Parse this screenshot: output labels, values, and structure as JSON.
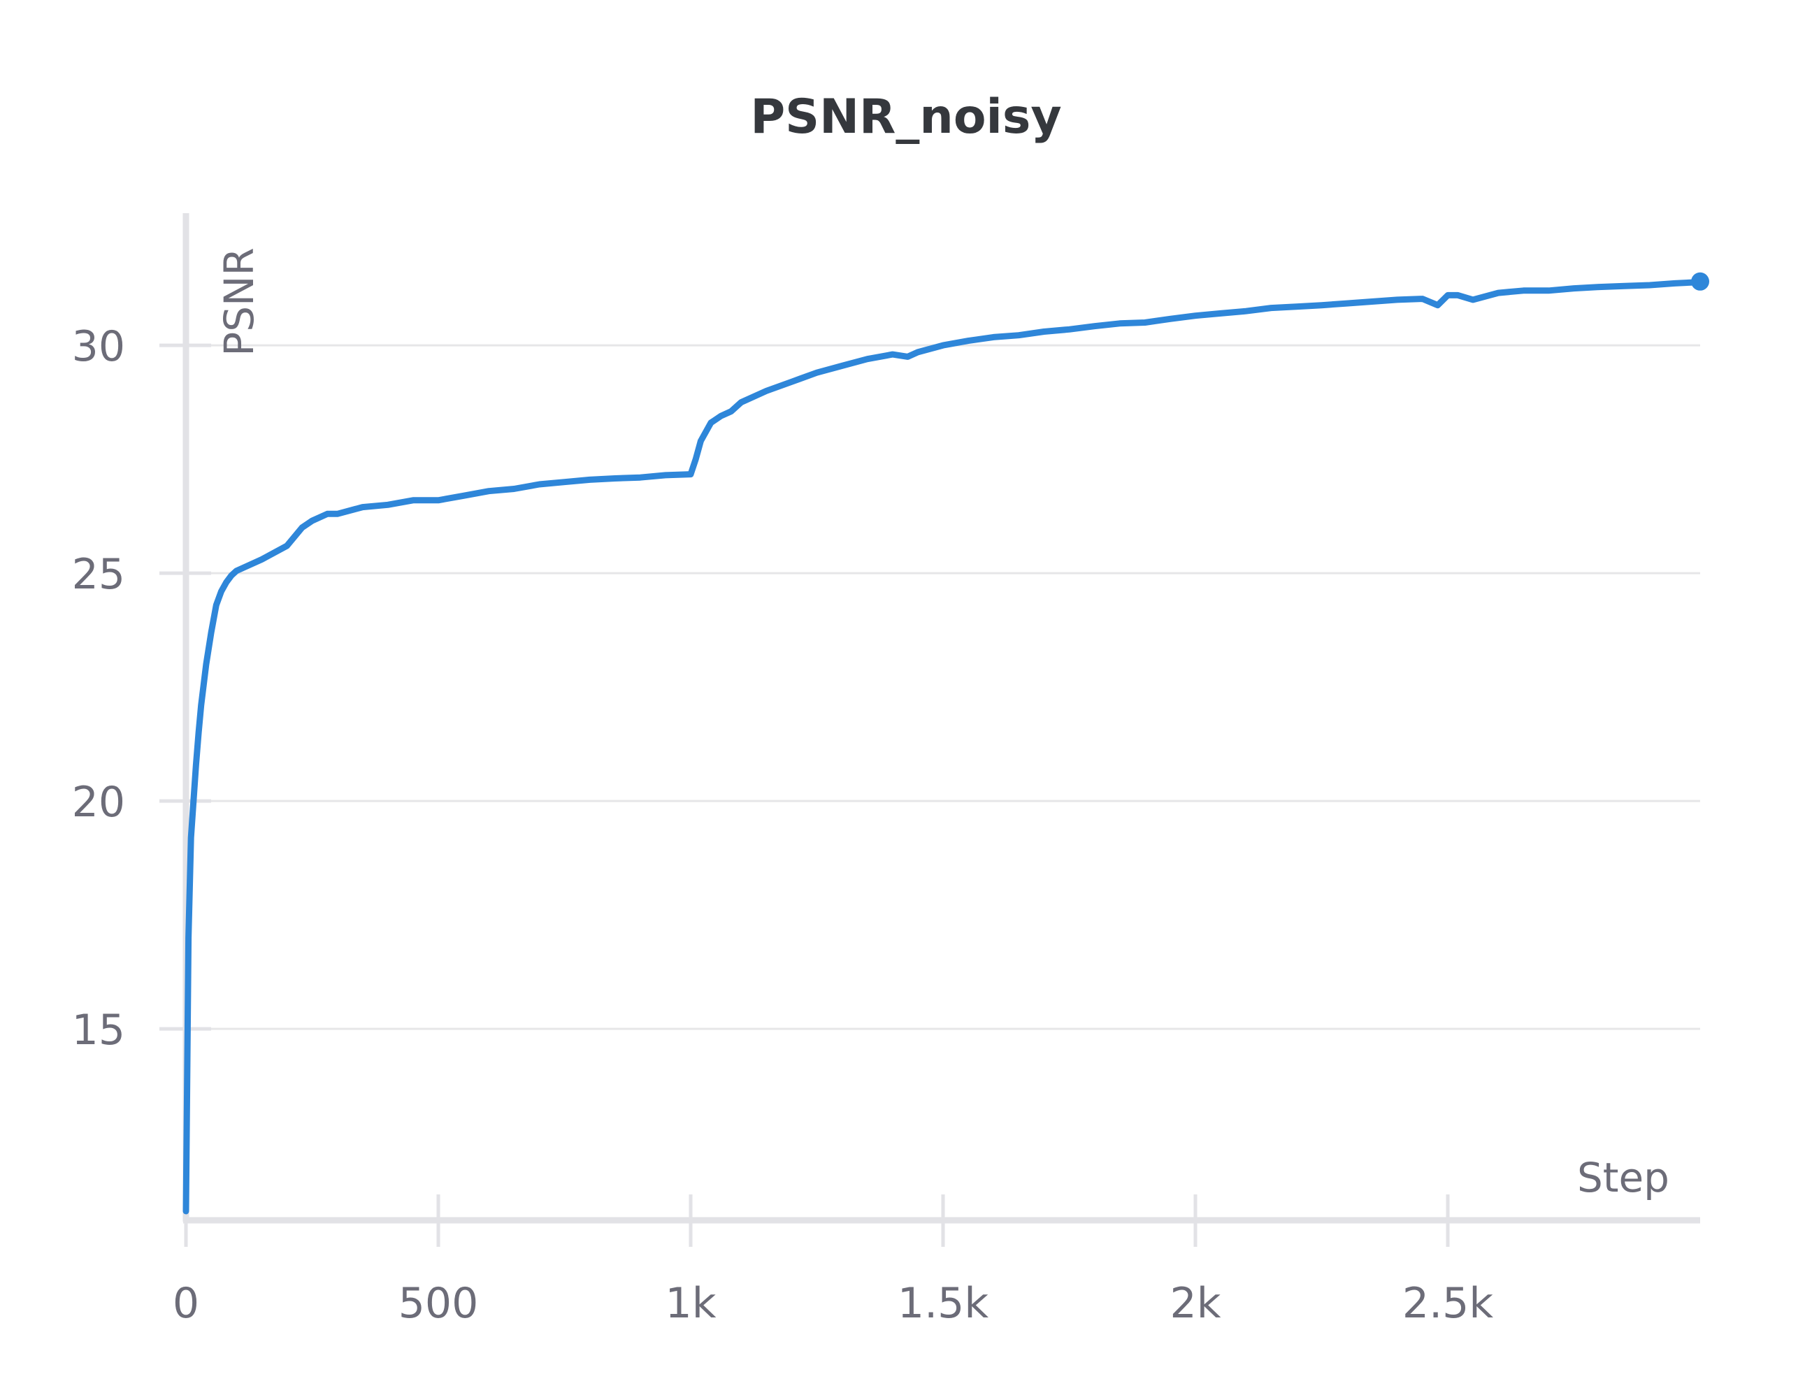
{
  "chart_data": {
    "type": "line",
    "title": "PSNR_noisy",
    "xlabel": "Step",
    "ylabel": "PSNR",
    "xlim": [
      0,
      3000
    ],
    "ylim": [
      10.8,
      32.9
    ],
    "x_ticks": [
      {
        "value": 0,
        "label": "0"
      },
      {
        "value": 500,
        "label": "500"
      },
      {
        "value": 1000,
        "label": "1k"
      },
      {
        "value": 1500,
        "label": "1.5k"
      },
      {
        "value": 2000,
        "label": "2k"
      },
      {
        "value": 2500,
        "label": "2.5k"
      }
    ],
    "y_ticks": [
      {
        "value": 15,
        "label": "15"
      },
      {
        "value": 20,
        "label": "20"
      },
      {
        "value": 25,
        "label": "25"
      },
      {
        "value": 30,
        "label": "30"
      }
    ],
    "grid": true,
    "legend": "none",
    "colors": {
      "line": "#2e86d9",
      "grid": "#e6e6e8",
      "axis": "#e2e2e6",
      "text": "#6c6c78",
      "title": "#35383d"
    },
    "series": [
      {
        "x": [
          0,
          5,
          10,
          15,
          20,
          25,
          30,
          40,
          50,
          60,
          70,
          80,
          90,
          100,
          120,
          150,
          200,
          230,
          250,
          280,
          300,
          350,
          400,
          450,
          500,
          550,
          600,
          650,
          700,
          750,
          800,
          850,
          900,
          950,
          1000,
          1010,
          1020,
          1040,
          1060,
          1080,
          1100,
          1150,
          1200,
          1250,
          1300,
          1350,
          1400,
          1430,
          1450,
          1500,
          1550,
          1600,
          1650,
          1700,
          1750,
          1800,
          1850,
          1900,
          1950,
          2000,
          2050,
          2100,
          2150,
          2200,
          2250,
          2300,
          2350,
          2400,
          2450,
          2480,
          2500,
          2520,
          2550,
          2600,
          2650,
          2700,
          2750,
          2800,
          2850,
          2900,
          2950,
          2985,
          3000
        ],
        "y": [
          11.0,
          17.0,
          19.2,
          20.0,
          20.8,
          21.5,
          22.1,
          23.0,
          23.7,
          24.3,
          24.6,
          24.8,
          24.95,
          25.05,
          25.15,
          25.3,
          25.6,
          26.0,
          26.15,
          26.3,
          26.3,
          26.45,
          26.5,
          26.6,
          26.6,
          26.7,
          26.8,
          26.85,
          26.95,
          27.0,
          27.05,
          27.08,
          27.1,
          27.15,
          27.17,
          27.5,
          27.9,
          28.3,
          28.45,
          28.55,
          28.75,
          29.0,
          29.2,
          29.4,
          29.55,
          29.7,
          29.8,
          29.75,
          29.85,
          30.0,
          30.1,
          30.18,
          30.22,
          30.3,
          30.35,
          30.42,
          30.48,
          30.5,
          30.58,
          30.65,
          30.7,
          30.75,
          30.82,
          30.85,
          30.88,
          30.92,
          30.96,
          31.0,
          31.02,
          30.88,
          31.1,
          31.1,
          31.0,
          31.15,
          31.2,
          31.2,
          31.25,
          31.28,
          31.3,
          31.32,
          31.36,
          31.38,
          31.4
        ]
      }
    ]
  }
}
